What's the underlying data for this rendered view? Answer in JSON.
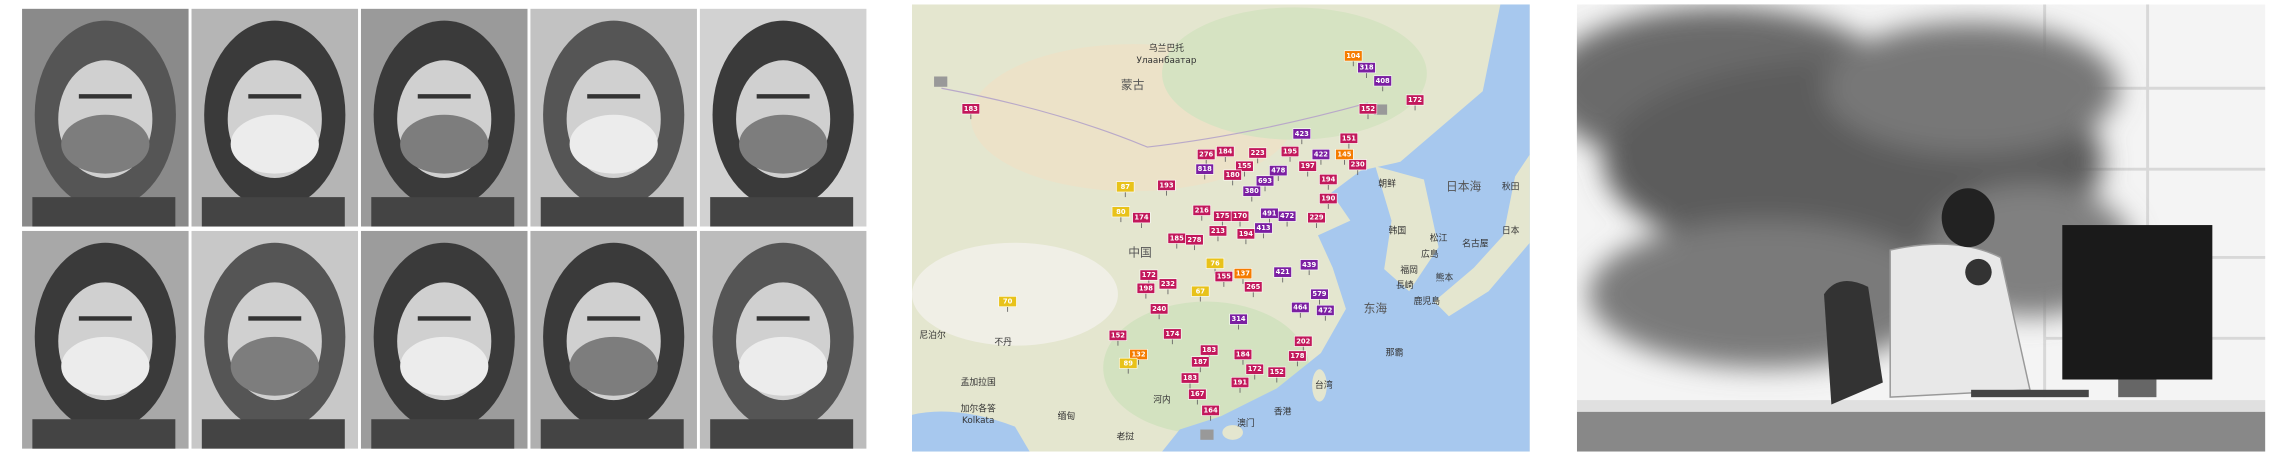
{
  "map": {
    "labels": [
      "乌兰巴托",
      "Улаанбаатар",
      "蒙古",
      "中国",
      "朝鲜",
      "韩国",
      "日本海",
      "日本",
      "秋田",
      "松江",
      "広島",
      "名古屋",
      "福岡",
      "長崎",
      "熊本",
      "鹿児島",
      "东海",
      "那霸",
      "台湾",
      "香港",
      "澳门",
      "河内",
      "老挝",
      "缅甸",
      "不丹",
      "尼泊尔",
      "孟加拉国",
      "加尔各答",
      "Kolkata"
    ],
    "aqi_markers": [
      104,
      318,
      408,
      172,
      152,
      183,
      423,
      151,
      87,
      193,
      276,
      184,
      223,
      195,
      422,
      145,
      230,
      818,
      155,
      478,
      197,
      180,
      693,
      194,
      380,
      190,
      216,
      491,
      174,
      80,
      175,
      170,
      472,
      213,
      194,
      413,
      229,
      185,
      278,
      76,
      421,
      439,
      137,
      155,
      172,
      198,
      67,
      265,
      70,
      240,
      232,
      314,
      464,
      579,
      472,
      152,
      174,
      202,
      183,
      178,
      132,
      187,
      184,
      89,
      183,
      172,
      152,
      191,
      167,
      164
    ]
  }
}
